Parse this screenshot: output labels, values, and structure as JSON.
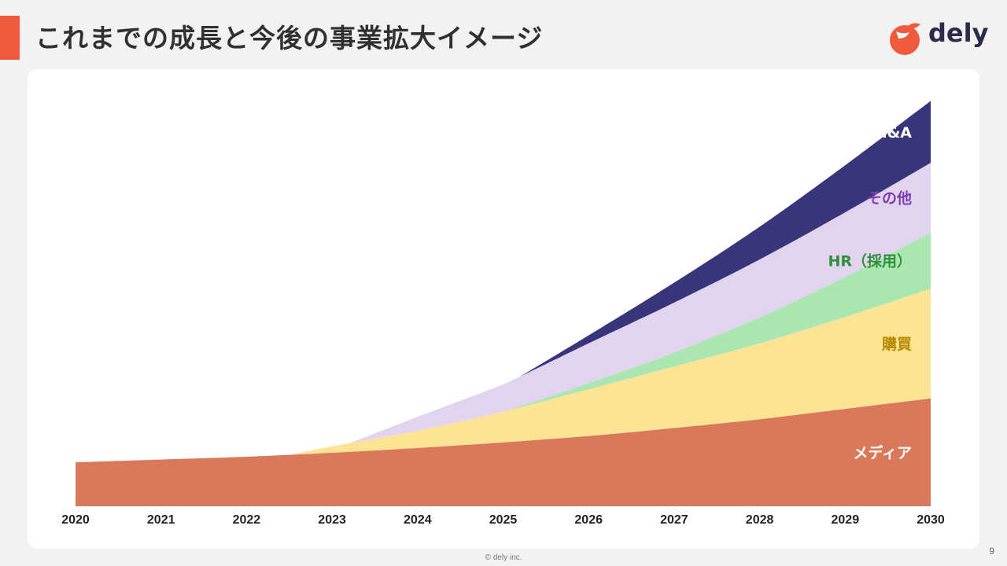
{
  "header": {
    "title": "これまでの成長と今後の事業拡大イメージ",
    "logo_text": "dely",
    "accent_color": "#f05a3c"
  },
  "footer": {
    "copyright": "© dely inc.",
    "page_number": "9"
  },
  "chart_data": {
    "type": "area",
    "stacked": true,
    "x": [
      2020,
      2021,
      2022,
      2023,
      2024,
      2025,
      2026,
      2027,
      2028,
      2029,
      2030
    ],
    "xlim": [
      2020,
      2030
    ],
    "ylim": [
      0,
      100
    ],
    "grid": false,
    "legend": "inline-right",
    "series": [
      {
        "name": "メディア",
        "color": "#d9785a",
        "label_color": "#ffffff",
        "points": [
          [
            2020,
            11.0
          ],
          [
            2021,
            11.7
          ],
          [
            2022,
            12.4
          ],
          [
            2023,
            13.4
          ],
          [
            2024,
            14.6
          ],
          [
            2025,
            16.0
          ],
          [
            2026,
            17.6
          ],
          [
            2027,
            19.6
          ],
          [
            2028,
            21.8
          ],
          [
            2029,
            24.4
          ],
          [
            2030,
            27.0
          ]
        ]
      },
      {
        "name": "購買",
        "color": "#fde495",
        "label_color": "#b58a00",
        "points": [
          [
            2022.5,
            0
          ],
          [
            2023,
            1.6
          ],
          [
            2024,
            4.3
          ],
          [
            2025,
            7.7
          ],
          [
            2026,
            11.7
          ],
          [
            2027,
            15.4
          ],
          [
            2028,
            19.0
          ],
          [
            2029,
            23.0
          ],
          [
            2030,
            27.5
          ]
        ]
      },
      {
        "name": "HR（採用）",
        "color": "#a9e6b1",
        "label_color": "#2f8f3a",
        "points": [
          [
            2025,
            0
          ],
          [
            2026,
            1.5
          ],
          [
            2027,
            3.5
          ],
          [
            2028,
            6.5
          ],
          [
            2029,
            10.0
          ],
          [
            2030,
            14.0
          ]
        ]
      },
      {
        "name": "その他",
        "color": "#e2d4ef",
        "label_color": "#7a3fb0",
        "points": [
          [
            2023.2,
            0
          ],
          [
            2024,
            3.5
          ],
          [
            2025,
            6.8
          ],
          [
            2026,
            10.0
          ],
          [
            2027,
            12.5
          ],
          [
            2028,
            14.5
          ],
          [
            2029,
            16.2
          ],
          [
            2030,
            17.5
          ]
        ]
      },
      {
        "name": "M&A",
        "color": "#38357a",
        "label_color": "#ffffff",
        "points": [
          [
            2025.2,
            0
          ],
          [
            2026,
            2.0
          ],
          [
            2027,
            5.0
          ],
          [
            2028,
            8.2
          ],
          [
            2029,
            11.8
          ],
          [
            2030,
            15.5
          ]
        ]
      }
    ]
  }
}
